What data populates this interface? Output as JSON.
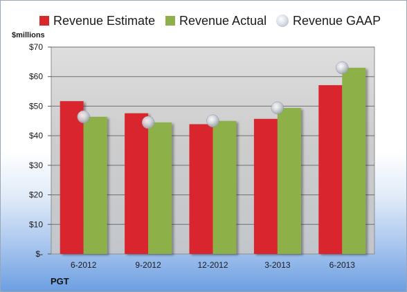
{
  "chart_data": {
    "type": "bar",
    "title": "",
    "unit_label": "$millions",
    "categories": [
      "6-2012",
      "9-2012",
      "12-2012",
      "3-2013",
      "6-2013"
    ],
    "series": [
      {
        "name": "Revenue Estimate",
        "type": "bar",
        "color": "#d9272e",
        "values": [
          51.7,
          47.6,
          43.9,
          45.7,
          57.1
        ]
      },
      {
        "name": "Revenue Actual",
        "type": "bar",
        "color": "#8db04a",
        "values": [
          46.4,
          44.5,
          45.0,
          49.4,
          63.0
        ]
      },
      {
        "name": "Revenue GAAP",
        "type": "marker",
        "color": "#c0c4cc",
        "values": [
          46.4,
          44.5,
          45.0,
          49.4,
          63.0
        ]
      }
    ],
    "ylim": [
      0,
      70
    ],
    "yticks": [
      0,
      10,
      20,
      30,
      40,
      50,
      60,
      70
    ],
    "ytick_labels": [
      "$-",
      "$10",
      "$20",
      "$30",
      "$40",
      "$50",
      "$60",
      "$70"
    ],
    "grid": true,
    "legend": "top"
  },
  "footer": {
    "ticker": "PGT"
  }
}
